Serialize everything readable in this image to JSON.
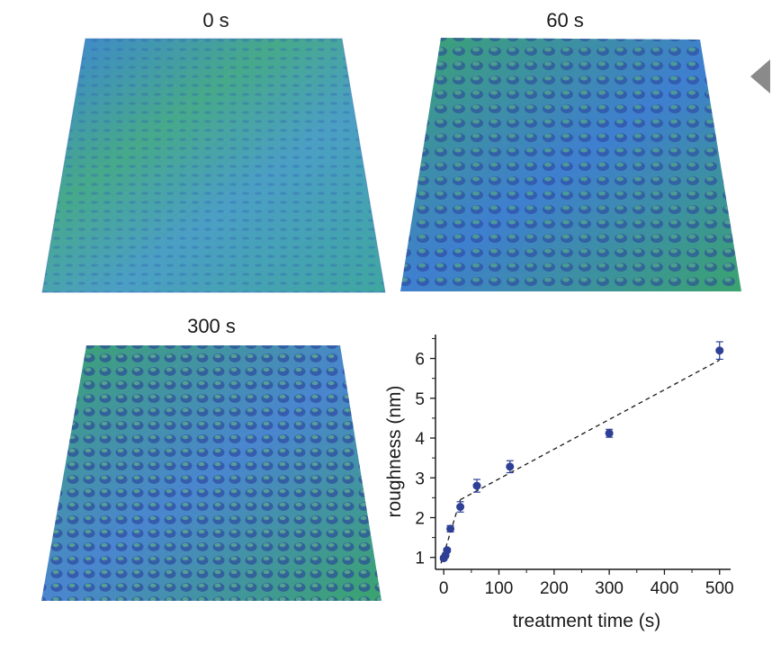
{
  "panels": {
    "p0": {
      "title": "0 s"
    },
    "p60": {
      "title": "60 s"
    },
    "p300": {
      "title": "300 s"
    }
  },
  "colors": {
    "surface_blue": "#3f7fd0",
    "surface_green": "#3aa46e",
    "surface_dark": "#2a3f9a",
    "point": "#2e3f95"
  },
  "chart_data": {
    "type": "scatter",
    "xlabel": "treatment time (s)",
    "ylabel": "roughness (nm)",
    "xlim": [
      -15,
      520
    ],
    "ylim": [
      0.7,
      6.6
    ],
    "xticks": [
      0,
      100,
      200,
      300,
      400,
      500
    ],
    "yticks": [
      1,
      2,
      3,
      4,
      5,
      6
    ],
    "grid": false,
    "points": [
      {
        "x": 0,
        "y": 0.98,
        "err": 0.05
      },
      {
        "x": 3,
        "y": 1.05,
        "err": 0.05
      },
      {
        "x": 6,
        "y": 1.18,
        "err": 0.05
      },
      {
        "x": 12,
        "y": 1.72,
        "err": 0.08
      },
      {
        "x": 30,
        "y": 2.27,
        "err": 0.13
      },
      {
        "x": 60,
        "y": 2.8,
        "err": 0.16
      },
      {
        "x": 120,
        "y": 3.28,
        "err": 0.15
      },
      {
        "x": 300,
        "y": 4.12,
        "err": 0.1
      },
      {
        "x": 500,
        "y": 6.2,
        "err": 0.22
      }
    ],
    "fit_lines": [
      {
        "x": [
          -5,
          30
        ],
        "y": [
          0.85,
          2.45
        ]
      },
      {
        "x": [
          30,
          500
        ],
        "y": [
          2.45,
          5.96
        ]
      }
    ]
  }
}
